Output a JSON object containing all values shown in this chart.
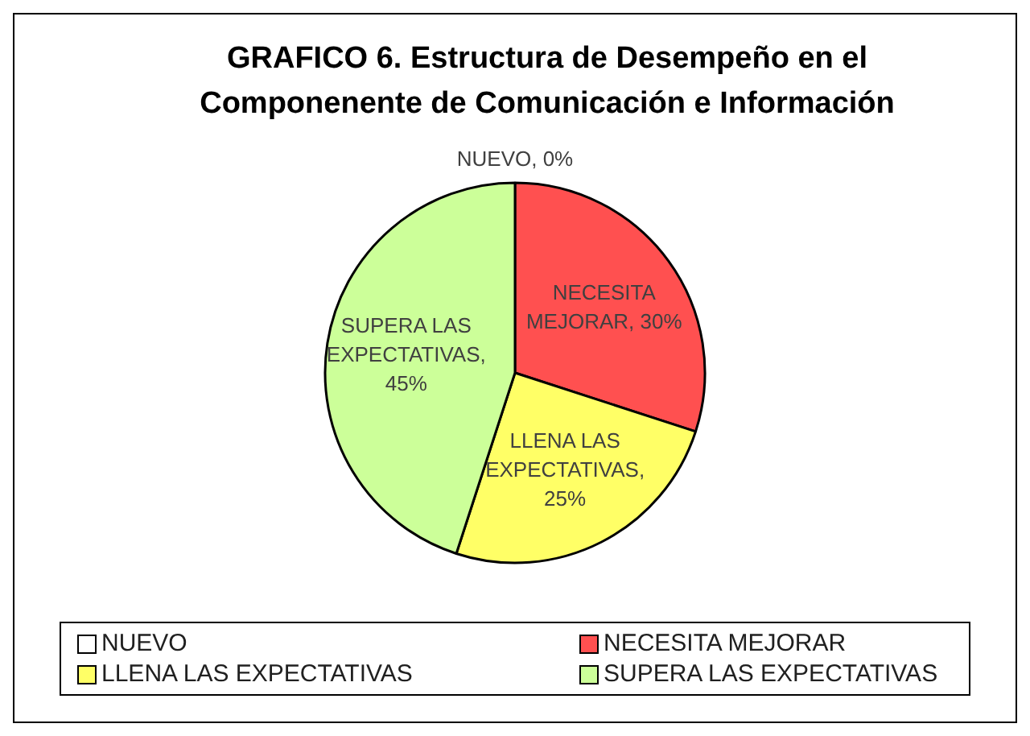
{
  "chart_data": {
    "type": "pie",
    "title": "GRAFICO 6. Estructura de Desempeño en el Componenente de Comunicación e Información",
    "categories": [
      "NUEVO",
      "NECESITA MEJORAR",
      "LLENA LAS EXPECTATIVAS",
      "SUPERA LAS EXPECTATIVAS"
    ],
    "values": [
      0,
      30,
      25,
      45
    ],
    "value_labels": [
      "NUEVO, 0%",
      "NECESITA MEJORAR, 30%",
      "LLENA LAS EXPECTATIVAS, 25%",
      "SUPERA LAS EXPECTATIVAS, 45%"
    ],
    "colors": [
      "#ffffff",
      "#ff5050",
      "#ffff66",
      "#ccff99"
    ],
    "legend": "bottom"
  }
}
